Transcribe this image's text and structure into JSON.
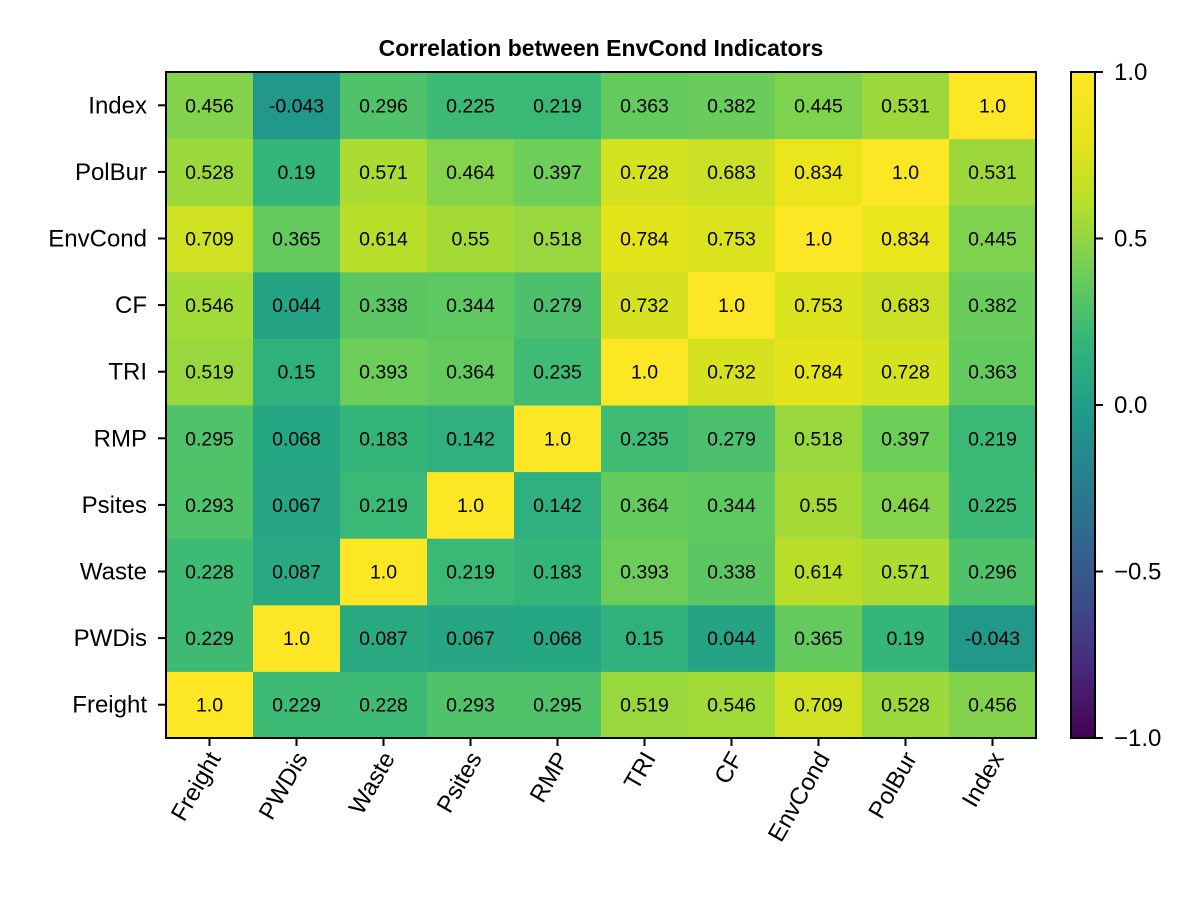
{
  "chart_data": {
    "type": "heatmap",
    "title": "Correlation between EnvCond Indicators",
    "xlabel": "",
    "ylabel": "",
    "x_categories": [
      "Freight",
      "PWDis",
      "Waste",
      "Psites",
      "RMP",
      "TRI",
      "CF",
      "EnvCond",
      "PolBur",
      "Index"
    ],
    "y_categories": [
      "Freight",
      "PWDis",
      "Waste",
      "Psites",
      "RMP",
      "TRI",
      "CF",
      "EnvCond",
      "PolBur",
      "Index"
    ],
    "labels": [
      [
        "1.0",
        "0.229",
        "0.228",
        "0.293",
        "0.295",
        "0.519",
        "0.546",
        "0.709",
        "0.528",
        "0.456"
      ],
      [
        "0.229",
        "1.0",
        "0.087",
        "0.067",
        "0.068",
        "0.15",
        "0.044",
        "0.365",
        "0.19",
        "-0.043"
      ],
      [
        "0.228",
        "0.087",
        "1.0",
        "0.219",
        "0.183",
        "0.393",
        "0.338",
        "0.614",
        "0.571",
        "0.296"
      ],
      [
        "0.293",
        "0.067",
        "0.219",
        "1.0",
        "0.142",
        "0.364",
        "0.344",
        "0.55",
        "0.464",
        "0.225"
      ],
      [
        "0.295",
        "0.068",
        "0.183",
        "0.142",
        "1.0",
        "0.235",
        "0.279",
        "0.518",
        "0.397",
        "0.219"
      ],
      [
        "0.519",
        "0.15",
        "0.393",
        "0.364",
        "0.235",
        "1.0",
        "0.732",
        "0.784",
        "0.728",
        "0.363"
      ],
      [
        "0.546",
        "0.044",
        "0.338",
        "0.344",
        "0.279",
        "0.732",
        "1.0",
        "0.753",
        "0.683",
        "0.382"
      ],
      [
        "0.709",
        "0.365",
        "0.614",
        "0.55",
        "0.518",
        "0.784",
        "0.753",
        "1.0",
        "0.834",
        "0.445"
      ],
      [
        "0.528",
        "0.19",
        "0.571",
        "0.464",
        "0.397",
        "0.728",
        "0.683",
        "0.834",
        "1.0",
        "0.531"
      ],
      [
        "0.456",
        "-0.043",
        "0.296",
        "0.225",
        "0.219",
        "0.363",
        "0.382",
        "0.445",
        "0.531",
        "1.0"
      ]
    ],
    "colorbar": {
      "range": [
        -1.0,
        1.0
      ],
      "ticks": [
        "-1.0",
        "-0.5",
        "0.0",
        "0.5",
        "1.0"
      ],
      "colormap": "viridis"
    }
  }
}
